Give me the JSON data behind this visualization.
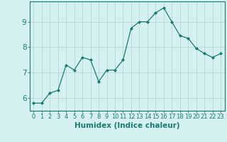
{
  "x": [
    0,
    1,
    2,
    3,
    4,
    5,
    6,
    7,
    8,
    9,
    10,
    11,
    12,
    13,
    14,
    15,
    16,
    17,
    18,
    19,
    20,
    21,
    22,
    23
  ],
  "y": [
    5.8,
    5.8,
    6.2,
    6.3,
    7.3,
    7.1,
    7.6,
    7.5,
    6.65,
    7.1,
    7.1,
    7.5,
    8.75,
    9.0,
    9.0,
    9.35,
    9.55,
    9.0,
    8.45,
    8.35,
    7.95,
    7.75,
    7.6,
    7.75
  ],
  "line_color": "#1a7a6e",
  "marker": "D",
  "marker_size": 2.0,
  "bg_color": "#d4f0f0",
  "grid_color": "#b8d8d8",
  "xlabel": "Humidex (Indice chaleur)",
  "xlabel_fontsize": 7.5,
  "ylabel_ticks": [
    6,
    7,
    8,
    9
  ],
  "xtick_labels": [
    "0",
    "1",
    "2",
    "3",
    "4",
    "5",
    "6",
    "7",
    "8",
    "9",
    "10",
    "11",
    "12",
    "13",
    "14",
    "15",
    "16",
    "17",
    "18",
    "19",
    "20",
    "21",
    "22",
    "23"
  ],
  "xlim": [
    -0.5,
    23.5
  ],
  "ylim": [
    5.5,
    9.8
  ],
  "ytick_fontsize": 7.5,
  "xtick_fontsize": 6.0
}
